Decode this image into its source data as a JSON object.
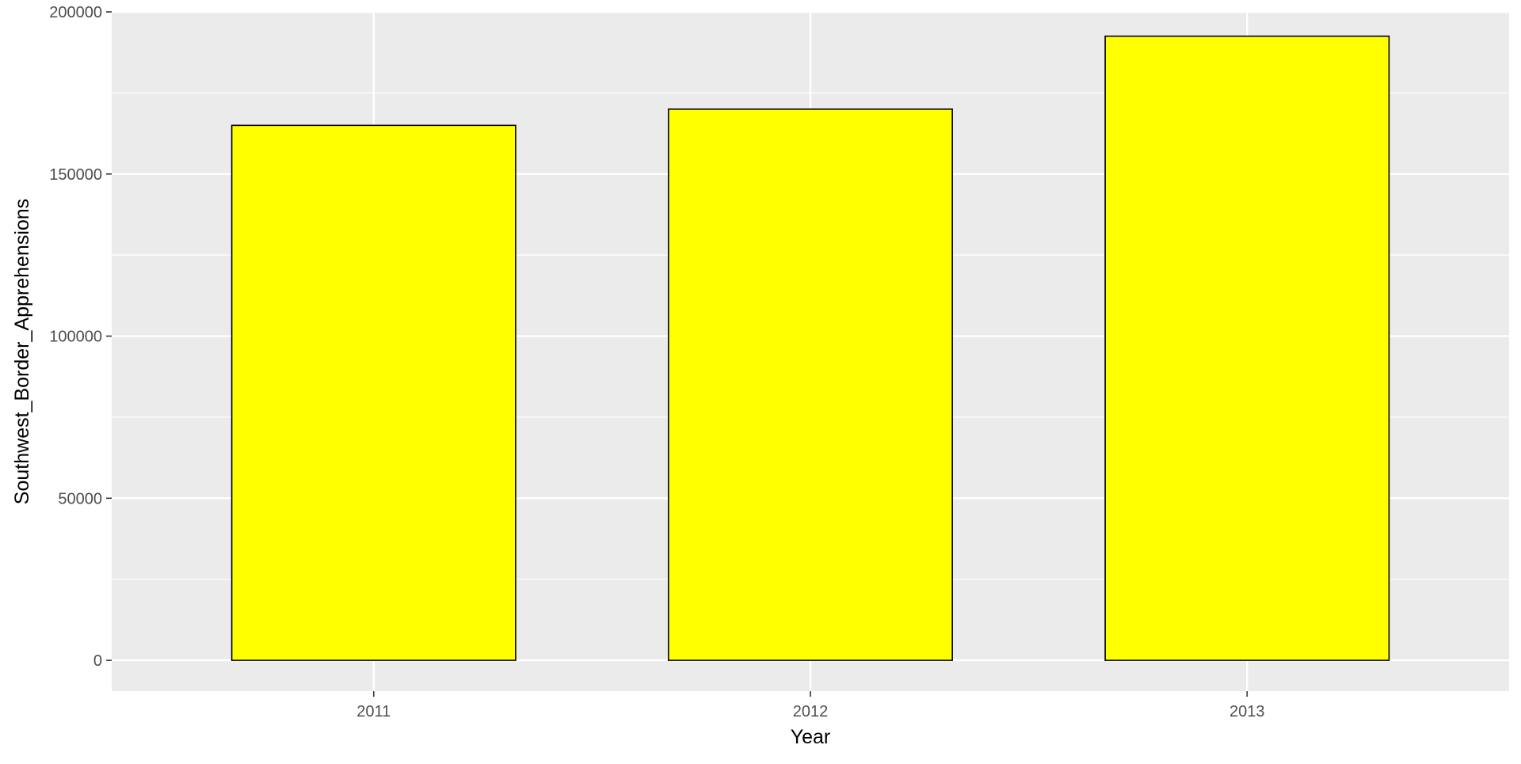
{
  "chart_data": {
    "type": "bar",
    "title": "",
    "xlabel": "Year",
    "ylabel": "Southwest_Border_Apprehensions",
    "categories": [
      "2011",
      "2012",
      "2013"
    ],
    "values": [
      165000,
      170000,
      192500
    ],
    "ylim": [
      -9500,
      200000
    ],
    "y_ticks": [
      0,
      50000,
      100000,
      150000,
      200000
    ],
    "y_tick_labels": [
      "0",
      "50000",
      "100000",
      "150000",
      "200000"
    ],
    "grid": true,
    "legend": "none",
    "colors": {
      "panel_background": "#EBEBEB",
      "grid_line": "#FFFFFF",
      "bar_fill": "#FFFF00",
      "bar_outline": "#000000",
      "tick_text": "#4D4D4D",
      "axis_title_text": "#000000"
    }
  }
}
